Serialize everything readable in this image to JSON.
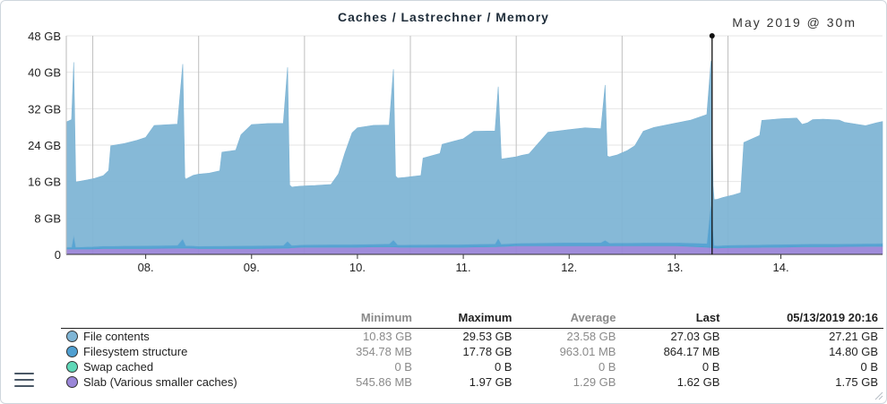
{
  "header": {
    "title": "Caches / Lastrechner / Memory",
    "range": "May 2019 @ 30m"
  },
  "colors": {
    "file_contents": "#7fb5d5",
    "filesystem_structure": "#4f9fd1",
    "swap_cached": "#5fd8b8",
    "slab": "#9a86d8"
  },
  "chart_data": {
    "type": "area",
    "title": "Caches / Lastrechner / Memory",
    "stacked": true,
    "y_unit": "GB",
    "ylim": [
      0,
      48
    ],
    "yticks": [
      "0",
      "8 GB",
      "16 GB",
      "24 GB",
      "32 GB",
      "40 GB",
      "48 GB"
    ],
    "x_range_days": [
      7.25,
      14.96
    ],
    "xticks": [
      {
        "label": "08.",
        "x": 8.0
      },
      {
        "label": "09.",
        "x": 9.0
      },
      {
        "label": "10.",
        "x": 10.0
      },
      {
        "label": "11.",
        "x": 11.0
      },
      {
        "label": "12.",
        "x": 12.0
      },
      {
        "label": "13.",
        "x": 13.0
      },
      {
        "label": "14.",
        "x": 14.0
      }
    ],
    "cursor_x": 13.35,
    "series": [
      {
        "name": "Slab (Various smaller caches)",
        "color_key": "slab",
        "points": [
          [
            7.25,
            1.2
          ],
          [
            7.5,
            1.2
          ],
          [
            7.6,
            1.3
          ],
          [
            8.0,
            1.3
          ],
          [
            8.3,
            1.4
          ],
          [
            8.4,
            1.4
          ],
          [
            8.5,
            1.3
          ],
          [
            9.0,
            1.3
          ],
          [
            9.35,
            1.4
          ],
          [
            9.4,
            1.5
          ],
          [
            9.5,
            1.6
          ],
          [
            10.0,
            1.6
          ],
          [
            10.3,
            1.7
          ],
          [
            10.4,
            1.6
          ],
          [
            10.5,
            1.6
          ],
          [
            11.0,
            1.6
          ],
          [
            11.3,
            1.7
          ],
          [
            11.4,
            1.8
          ],
          [
            11.5,
            1.9
          ],
          [
            12.0,
            1.9
          ],
          [
            12.4,
            1.9
          ],
          [
            12.5,
            1.9
          ],
          [
            13.0,
            1.9
          ],
          [
            13.3,
            1.6
          ],
          [
            13.4,
            1.4
          ],
          [
            13.5,
            1.5
          ],
          [
            14.0,
            1.6
          ],
          [
            14.3,
            1.7
          ],
          [
            14.5,
            1.7
          ],
          [
            14.96,
            1.8
          ]
        ]
      },
      {
        "name": "Swap cached",
        "color_key": "swap_cached",
        "points": [
          [
            7.25,
            0
          ],
          [
            14.96,
            0
          ]
        ]
      },
      {
        "name": "Filesystem structure",
        "color_key": "filesystem_structure",
        "points": [
          [
            7.25,
            0.4
          ],
          [
            7.3,
            0.4
          ],
          [
            7.32,
            3.0
          ],
          [
            7.34,
            0.4
          ],
          [
            7.5,
            0.5
          ],
          [
            8.0,
            0.6
          ],
          [
            8.3,
            0.6
          ],
          [
            8.35,
            2.0
          ],
          [
            8.38,
            0.5
          ],
          [
            9.0,
            0.6
          ],
          [
            9.3,
            0.6
          ],
          [
            9.34,
            1.5
          ],
          [
            9.38,
            0.5
          ],
          [
            10.0,
            0.6
          ],
          [
            10.3,
            0.6
          ],
          [
            10.34,
            1.5
          ],
          [
            10.38,
            0.5
          ],
          [
            11.0,
            0.6
          ],
          [
            11.3,
            0.6
          ],
          [
            11.33,
            1.8
          ],
          [
            11.36,
            0.5
          ],
          [
            12.0,
            0.7
          ],
          [
            12.3,
            0.7
          ],
          [
            12.34,
            1.2
          ],
          [
            12.38,
            0.6
          ],
          [
            13.0,
            0.7
          ],
          [
            13.3,
            0.8
          ],
          [
            13.34,
            10.0
          ],
          [
            13.37,
            0.5
          ],
          [
            14.0,
            0.6
          ],
          [
            14.5,
            0.6
          ],
          [
            14.96,
            0.6
          ]
        ]
      },
      {
        "name": "File contents",
        "color_key": "file_contents",
        "points": [
          [
            7.25,
            27.5
          ],
          [
            7.3,
            28.0
          ],
          [
            7.32,
            38.0
          ],
          [
            7.34,
            14.3
          ],
          [
            7.45,
            14.7
          ],
          [
            7.52,
            15.0
          ],
          [
            7.6,
            15.5
          ],
          [
            7.65,
            16.6
          ],
          [
            7.67,
            22.0
          ],
          [
            7.8,
            22.5
          ],
          [
            7.92,
            23.2
          ],
          [
            8.0,
            23.8
          ],
          [
            8.08,
            26.4
          ],
          [
            8.3,
            26.6
          ],
          [
            8.35,
            38.4
          ],
          [
            8.37,
            14.5
          ],
          [
            8.45,
            15.5
          ],
          [
            8.5,
            15.8
          ],
          [
            8.6,
            16.0
          ],
          [
            8.7,
            16.5
          ],
          [
            8.72,
            20.6
          ],
          [
            8.85,
            21.0
          ],
          [
            8.9,
            24.4
          ],
          [
            9.0,
            26.6
          ],
          [
            9.15,
            26.8
          ],
          [
            9.3,
            26.8
          ],
          [
            9.34,
            38.2
          ],
          [
            9.36,
            12.8
          ],
          [
            9.45,
            12.9
          ],
          [
            9.6,
            13.0
          ],
          [
            9.75,
            13.2
          ],
          [
            9.82,
            15.5
          ],
          [
            9.88,
            20.0
          ],
          [
            9.95,
            24.5
          ],
          [
            10.0,
            25.6
          ],
          [
            10.15,
            26.1
          ],
          [
            10.3,
            26.1
          ],
          [
            10.34,
            37.5
          ],
          [
            10.36,
            14.6
          ],
          [
            10.45,
            14.8
          ],
          [
            10.6,
            15.2
          ],
          [
            10.62,
            19.0
          ],
          [
            10.78,
            20.0
          ],
          [
            10.8,
            22.0
          ],
          [
            10.95,
            22.9
          ],
          [
            11.0,
            23.2
          ],
          [
            11.1,
            24.8
          ],
          [
            11.3,
            24.8
          ],
          [
            11.33,
            33.3
          ],
          [
            11.36,
            18.7
          ],
          [
            11.5,
            19.0
          ],
          [
            11.55,
            19.3
          ],
          [
            11.62,
            19.6
          ],
          [
            11.8,
            24.3
          ],
          [
            12.0,
            24.8
          ],
          [
            12.15,
            25.2
          ],
          [
            12.3,
            25.0
          ],
          [
            12.34,
            34.1
          ],
          [
            12.36,
            18.8
          ],
          [
            12.45,
            19.3
          ],
          [
            12.55,
            20.3
          ],
          [
            12.62,
            21.3
          ],
          [
            12.7,
            24.5
          ],
          [
            12.8,
            25.3
          ],
          [
            13.0,
            26.2
          ],
          [
            13.15,
            27.0
          ],
          [
            13.3,
            28.3
          ],
          [
            13.34,
            31.0
          ],
          [
            13.36,
            10.0
          ],
          [
            13.45,
            10.5
          ],
          [
            13.55,
            11.0
          ],
          [
            13.62,
            11.5
          ],
          [
            13.65,
            22.5
          ],
          [
            13.8,
            24.0
          ],
          [
            13.82,
            27.3
          ],
          [
            14.0,
            27.6
          ],
          [
            14.15,
            27.7
          ],
          [
            14.2,
            26.3
          ],
          [
            14.25,
            26.6
          ],
          [
            14.3,
            27.3
          ],
          [
            14.4,
            27.4
          ],
          [
            14.55,
            27.2
          ],
          [
            14.6,
            26.7
          ],
          [
            14.8,
            25.9
          ],
          [
            14.9,
            26.5
          ],
          [
            14.96,
            26.8
          ]
        ]
      }
    ]
  },
  "legend": {
    "columns": [
      "",
      "Minimum",
      "Maximum",
      "Average",
      "Last",
      "05/13/2019 20:16"
    ],
    "rows": [
      {
        "name": "File contents",
        "color_key": "file_contents",
        "min": "10.83 GB",
        "max": "29.53 GB",
        "avg": "23.58 GB",
        "last": "27.03 GB",
        "at": "27.21 GB"
      },
      {
        "name": "Filesystem structure",
        "color_key": "filesystem_structure",
        "min": "354.78 MB",
        "max": "17.78 GB",
        "avg": "963.01 MB",
        "last": "864.17 MB",
        "at": "14.80 GB"
      },
      {
        "name": "Swap cached",
        "color_key": "swap_cached",
        "min": "0 B",
        "max": "0 B",
        "avg": "0 B",
        "last": "0 B",
        "at": "0 B"
      },
      {
        "name": "Slab (Various smaller caches)",
        "color_key": "slab",
        "min": "545.86 MB",
        "max": "1.97 GB",
        "avg": "1.29 GB",
        "last": "1.62 GB",
        "at": "1.75 GB"
      }
    ]
  }
}
